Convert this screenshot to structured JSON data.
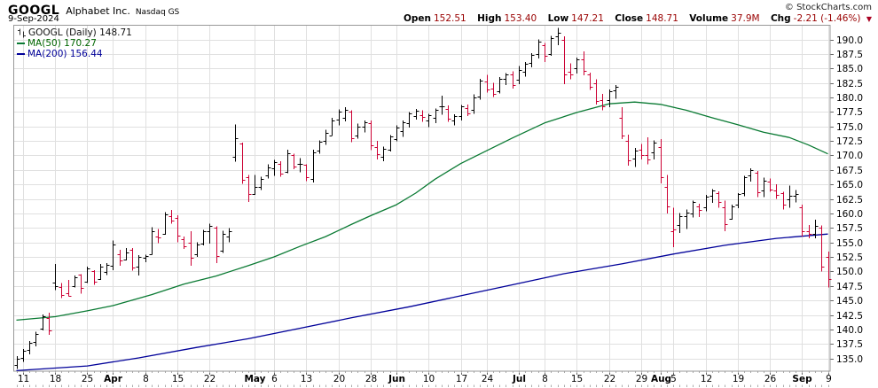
{
  "header": {
    "symbol": "GOOGL",
    "company": "Alphabet Inc.",
    "exchange": "Nasdaq GS",
    "date": "9-Sep-2024",
    "copyright": "© StockCharts.com",
    "quote": {
      "items": [
        {
          "label": "Open",
          "value": "152.51"
        },
        {
          "label": "High",
          "value": "153.40"
        },
        {
          "label": "Low",
          "value": "147.21"
        },
        {
          "label": "Close",
          "value": "148.71"
        },
        {
          "label": "Volume",
          "value": "37.9M"
        },
        {
          "label": "Chg",
          "value": "-2.21 (-1.46%)"
        }
      ],
      "down_icon": "▼"
    }
  },
  "legend": {
    "main": "GOOGL (Daily) 148.71",
    "ma50": "MA(50) 170.27",
    "ma200": "MA(200) 156.44"
  },
  "colors": {
    "up": "#000000",
    "down": "#cc0033",
    "ma50": "#0a7a33",
    "ma200": "#000099",
    "grid": "#e0e0e0",
    "frame": "#999999",
    "tick": "#666666",
    "day_tick": "#aaaaaa",
    "axis_text": "#000000"
  },
  "chart_data": {
    "type": "bar",
    "subtype": "ohlc-bars",
    "title": "GOOGL (Daily)",
    "ylabel": "Price",
    "ylim": [
      132.8,
      192.9
    ],
    "grid": true,
    "legend_position": "top-left",
    "y_ticks": [
      190.0,
      187.5,
      185.0,
      182.5,
      180.0,
      177.5,
      175.0,
      172.5,
      170.0,
      167.5,
      165.0,
      162.5,
      160.0,
      157.5,
      155.0,
      152.5,
      150.0,
      147.5,
      145.0,
      142.5,
      140.0,
      137.5,
      135.0
    ],
    "x_ticks": [
      {
        "i": 1,
        "label": "11"
      },
      {
        "i": 6,
        "label": "18"
      },
      {
        "i": 11,
        "label": "25"
      },
      {
        "i": 15,
        "label": "Apr",
        "bold": true
      },
      {
        "i": 20,
        "label": "8"
      },
      {
        "i": 25,
        "label": "15"
      },
      {
        "i": 30,
        "label": "22"
      },
      {
        "i": 37,
        "label": "May",
        "bold": true
      },
      {
        "i": 40,
        "label": "6"
      },
      {
        "i": 45,
        "label": "13"
      },
      {
        "i": 50,
        "label": "20"
      },
      {
        "i": 55,
        "label": "28"
      },
      {
        "i": 59,
        "label": "Jun",
        "bold": true
      },
      {
        "i": 64,
        "label": "10"
      },
      {
        "i": 69,
        "label": "17"
      },
      {
        "i": 73,
        "label": "24"
      },
      {
        "i": 78,
        "label": "Jul",
        "bold": true
      },
      {
        "i": 82,
        "label": "8"
      },
      {
        "i": 87,
        "label": "15"
      },
      {
        "i": 92,
        "label": "22"
      },
      {
        "i": 97,
        "label": "29"
      },
      {
        "i": 100,
        "label": "Aug",
        "bold": true
      },
      {
        "i": 102,
        "label": "5"
      },
      {
        "i": 107,
        "label": "12"
      },
      {
        "i": 112,
        "label": "19"
      },
      {
        "i": 117,
        "label": "26"
      },
      {
        "i": 122,
        "label": "Sep",
        "bold": true
      },
      {
        "i": 126,
        "label": "9"
      }
    ],
    "ohlc": [
      [
        "Mar 8",
        133.9,
        135.4,
        133.2,
        135.0
      ],
      [
        "Mar 11",
        135.1,
        136.6,
        134.4,
        136.3
      ],
      [
        "Mar 12",
        136.4,
        138.0,
        135.7,
        137.7
      ],
      [
        "Mar 13",
        137.8,
        139.6,
        137.1,
        139.2
      ],
      [
        "Mar 14",
        140.1,
        142.6,
        139.8,
        142.3
      ],
      [
        "Mar 15",
        142.0,
        142.9,
        139.1,
        139.9
      ],
      [
        "Mar 18",
        148.0,
        151.3,
        146.8,
        147.5
      ],
      [
        "Mar 19",
        147.3,
        148.0,
        145.4,
        146.0
      ],
      [
        "Mar 20",
        146.2,
        148.5,
        145.7,
        145.8
      ],
      [
        "Mar 21",
        147.5,
        149.3,
        147.2,
        149.0
      ],
      [
        "Mar 22",
        149.4,
        149.5,
        146.2,
        147.1
      ],
      [
        "Mar 25",
        148.2,
        150.8,
        148.0,
        150.5
      ],
      [
        "Mar 26",
        150.0,
        150.2,
        147.7,
        148.2
      ],
      [
        "Mar 27",
        148.7,
        151.3,
        148.5,
        150.8
      ],
      [
        "Mar 28",
        149.9,
        151.4,
        149.4,
        151.2
      ],
      [
        "Apr 1",
        151.0,
        155.3,
        150.2,
        154.6
      ],
      [
        "Apr 2",
        153.0,
        153.7,
        151.0,
        151.9
      ],
      [
        "Apr 3",
        152.0,
        154.0,
        151.9,
        153.3
      ],
      [
        "Apr 4",
        153.8,
        154.0,
        150.1,
        150.6
      ],
      [
        "Apr 5",
        150.8,
        152.8,
        149.3,
        152.5
      ],
      [
        "Apr 8",
        152.3,
        152.9,
        151.6,
        152.6
      ],
      [
        "Apr 9",
        153.0,
        157.6,
        152.9,
        156.9
      ],
      [
        "Apr 10",
        156.0,
        157.3,
        154.9,
        155.9
      ],
      [
        "Apr 11",
        156.5,
        160.2,
        156.3,
        159.9
      ],
      [
        "Apr 12",
        159.5,
        160.6,
        158.2,
        158.7
      ],
      [
        "Apr 15",
        159.3,
        159.7,
        155.0,
        156.1
      ],
      [
        "Apr 16",
        155.6,
        156.0,
        153.9,
        154.4
      ],
      [
        "Apr 17",
        155.0,
        156.9,
        151.0,
        152.3
      ],
      [
        "Apr 18",
        153.0,
        155.0,
        152.5,
        154.6
      ],
      [
        "Apr 19",
        154.8,
        157.2,
        154.5,
        156.9
      ],
      [
        "Apr 22",
        157.0,
        158.2,
        154.8,
        157.9
      ],
      [
        "Apr 23",
        157.5,
        157.8,
        151.4,
        152.6
      ],
      [
        "Apr 24",
        153.5,
        157.0,
        153.2,
        156.5
      ],
      [
        "Apr 25",
        156.0,
        157.5,
        155.0,
        157.0
      ],
      [
        "Apr 26",
        169.8,
        175.3,
        168.9,
        172.9
      ],
      [
        "Apr 29",
        172.0,
        172.2,
        165.1,
        165.8
      ],
      [
        "Apr 30",
        166.2,
        166.6,
        162.0,
        163.4
      ],
      [
        "May 1",
        163.3,
        166.6,
        163.2,
        164.6
      ],
      [
        "May 2",
        164.5,
        166.3,
        164.0,
        165.9
      ],
      [
        "May 3",
        166.5,
        168.5,
        166.0,
        167.9
      ],
      [
        "May 6",
        167.8,
        169.2,
        166.5,
        168.8
      ],
      [
        "May 7",
        168.5,
        169.0,
        166.3,
        166.9
      ],
      [
        "May 8",
        167.2,
        171.0,
        166.9,
        170.4
      ],
      [
        "May 9",
        170.0,
        170.3,
        167.6,
        168.1
      ],
      [
        "May 10",
        168.5,
        169.5,
        167.1,
        168.6
      ],
      [
        "May 13",
        168.4,
        168.5,
        165.6,
        166.3
      ],
      [
        "May 14",
        166.0,
        171.0,
        165.3,
        170.5
      ],
      [
        "May 15",
        170.8,
        172.6,
        170.3,
        172.3
      ],
      [
        "May 16",
        172.5,
        174.4,
        171.8,
        173.9
      ],
      [
        "May 17",
        173.5,
        176.5,
        173.4,
        176.1
      ],
      [
        "May 20",
        176.2,
        177.9,
        175.2,
        177.5
      ],
      [
        "May 21",
        176.5,
        178.3,
        175.9,
        177.9
      ],
      [
        "May 22",
        177.5,
        177.8,
        172.3,
        173.0
      ],
      [
        "May 23",
        173.5,
        175.5,
        172.9,
        175.0
      ],
      [
        "May 24",
        175.0,
        176.0,
        174.0,
        175.7
      ],
      [
        "May 28",
        175.5,
        176.0,
        170.9,
        171.8
      ],
      [
        "May 29",
        171.5,
        172.5,
        169.3,
        170.2
      ],
      [
        "May 30",
        169.8,
        171.5,
        169.0,
        171.2
      ],
      [
        "May 31",
        171.0,
        173.5,
        170.7,
        173.3
      ],
      [
        "Jun 3",
        172.8,
        175.2,
        172.4,
        174.8
      ],
      [
        "Jun 4",
        174.2,
        176.0,
        173.2,
        175.7
      ],
      [
        "Jun 5",
        175.5,
        177.5,
        174.8,
        177.2
      ],
      [
        "Jun 6",
        176.8,
        178.0,
        176.2,
        177.7
      ],
      [
        "Jun 7",
        177.0,
        177.8,
        175.8,
        176.7
      ],
      [
        "Jun 10",
        176.0,
        177.2,
        174.9,
        176.9
      ],
      [
        "Jun 11",
        176.5,
        178.1,
        175.6,
        177.8
      ],
      [
        "Jun 12",
        178.5,
        180.3,
        177.0,
        178.4
      ],
      [
        "Jun 13",
        178.0,
        178.6,
        175.8,
        176.3
      ],
      [
        "Jun 14",
        176.0,
        177.1,
        175.2,
        176.8
      ],
      [
        "Jun 17",
        176.8,
        178.7,
        176.0,
        178.4
      ],
      [
        "Jun 18",
        178.2,
        178.8,
        176.8,
        177.3
      ],
      [
        "Jun 20",
        177.8,
        180.5,
        177.2,
        180.0
      ],
      [
        "Jun 21",
        180.2,
        183.2,
        179.6,
        182.9
      ],
      [
        "Jun 24",
        182.8,
        183.9,
        180.8,
        181.3
      ],
      [
        "Jun 25",
        181.5,
        182.5,
        180.1,
        180.6
      ],
      [
        "Jun 26",
        181.0,
        183.5,
        180.7,
        183.2
      ],
      [
        "Jun 27",
        183.2,
        184.2,
        182.1,
        183.9
      ],
      [
        "Jun 28",
        184.0,
        184.5,
        181.5,
        182.2
      ],
      [
        "Jul 1",
        183.0,
        185.4,
        182.3,
        184.8
      ],
      [
        "Jul 2",
        184.5,
        186.1,
        183.6,
        185.8
      ],
      [
        "Jul 3",
        186.0,
        187.6,
        185.2,
        187.4
      ],
      [
        "Jul 5",
        187.5,
        190.0,
        186.7,
        189.6
      ],
      [
        "Jul 8",
        189.0,
        189.4,
        186.1,
        187.1
      ],
      [
        "Jul 9",
        187.5,
        190.6,
        187.2,
        190.3
      ],
      [
        "Jul 10",
        190.5,
        192.0,
        189.0,
        191.2
      ],
      [
        "Jul 11",
        190.0,
        190.5,
        182.3,
        184.0
      ],
      [
        "Jul 12",
        184.5,
        185.9,
        183.1,
        183.9
      ],
      [
        "Jul 15",
        185.0,
        186.9,
        184.1,
        186.6
      ],
      [
        "Jul 16",
        186.5,
        187.9,
        183.8,
        184.6
      ],
      [
        "Jul 17",
        184.0,
        184.3,
        181.3,
        181.8
      ],
      [
        "Jul 18",
        182.5,
        183.1,
        178.8,
        179.4
      ],
      [
        "Jul 19",
        179.5,
        180.6,
        177.8,
        178.4
      ],
      [
        "Jul 22",
        179.5,
        181.4,
        178.3,
        181.0
      ],
      [
        "Jul 23",
        181.2,
        182.1,
        179.8,
        181.8
      ],
      [
        "Jul 24",
        176.5,
        178.3,
        172.8,
        173.4
      ],
      [
        "Jul 25",
        172.5,
        173.6,
        168.2,
        169.2
      ],
      [
        "Jul 26",
        169.5,
        171.3,
        168.0,
        170.8
      ],
      [
        "Jul 29",
        171.0,
        172.0,
        169.3,
        170.1
      ],
      [
        "Jul 30",
        170.0,
        173.1,
        168.5,
        169.3
      ],
      [
        "Jul 31",
        170.5,
        172.6,
        169.3,
        172.2
      ],
      [
        "Aug 1",
        171.5,
        172.8,
        165.2,
        166.3
      ],
      [
        "Aug 2",
        164.5,
        166.6,
        160.0,
        161.2
      ],
      [
        "Aug 5",
        157.0,
        161.0,
        154.2,
        157.2
      ],
      [
        "Aug 6",
        158.0,
        160.1,
        156.6,
        159.5
      ],
      [
        "Aug 7",
        159.5,
        160.7,
        157.3,
        160.2
      ],
      [
        "Aug 8",
        160.0,
        162.2,
        159.3,
        161.9
      ],
      [
        "Aug 9",
        161.2,
        161.7,
        159.4,
        160.6
      ],
      [
        "Aug 12",
        161.0,
        163.2,
        160.4,
        162.9
      ],
      [
        "Aug 13",
        163.0,
        164.2,
        161.8,
        164.0
      ],
      [
        "Aug 14",
        163.5,
        163.8,
        161.0,
        161.9
      ],
      [
        "Aug 15",
        161.0,
        162.2,
        156.9,
        158.2
      ],
      [
        "Aug 16",
        159.0,
        161.5,
        158.9,
        161.2
      ],
      [
        "Aug 19",
        161.5,
        163.5,
        160.9,
        163.3
      ],
      [
        "Aug 20",
        163.5,
        166.5,
        163.0,
        166.2
      ],
      [
        "Aug 21",
        166.5,
        167.8,
        165.5,
        167.4
      ],
      [
        "Aug 22",
        167.0,
        167.3,
        162.8,
        163.6
      ],
      [
        "Aug 23",
        164.0,
        166.2,
        162.8,
        165.7
      ],
      [
        "Aug 26",
        165.5,
        166.0,
        163.7,
        164.1
      ],
      [
        "Aug 27",
        164.0,
        165.0,
        162.5,
        163.2
      ],
      [
        "Aug 28",
        163.5,
        163.7,
        160.7,
        161.5
      ],
      [
        "Aug 29",
        162.5,
        164.8,
        161.0,
        163.0
      ],
      [
        "Aug 30",
        163.0,
        164.0,
        161.9,
        163.4
      ],
      [
        "Sep 3",
        161.0,
        161.5,
        156.0,
        156.9
      ],
      [
        "Sep 4",
        157.0,
        158.0,
        155.7,
        156.4
      ],
      [
        "Sep 5",
        156.5,
        158.9,
        155.7,
        157.9
      ],
      [
        "Sep 6",
        157.5,
        157.9,
        150.0,
        150.9
      ],
      [
        "Sep 9",
        152.5,
        153.4,
        147.2,
        148.7
      ]
    ],
    "ma50": {
      "period": 50,
      "last": 170.27,
      "anchors": [
        [
          0,
          141.6
        ],
        [
          6,
          142.2
        ],
        [
          11,
          143.2
        ],
        [
          15,
          144.1
        ],
        [
          21,
          146.0
        ],
        [
          26,
          147.8
        ],
        [
          31,
          149.2
        ],
        [
          36,
          151.0
        ],
        [
          40,
          152.5
        ],
        [
          44,
          154.3
        ],
        [
          48,
          156.0
        ],
        [
          52,
          158.1
        ],
        [
          55,
          159.6
        ],
        [
          59,
          161.5
        ],
        [
          62,
          163.5
        ],
        [
          65,
          165.9
        ],
        [
          69,
          168.6
        ],
        [
          73,
          170.8
        ],
        [
          77,
          173.0
        ],
        [
          82,
          175.6
        ],
        [
          87,
          177.4
        ],
        [
          92,
          178.9
        ],
        [
          96,
          179.2
        ],
        [
          100,
          178.8
        ],
        [
          104,
          177.8
        ],
        [
          108,
          176.5
        ],
        [
          112,
          175.3
        ],
        [
          116,
          174.0
        ],
        [
          120,
          173.1
        ],
        [
          123,
          171.8
        ],
        [
          126,
          170.27
        ]
      ]
    },
    "ma200": {
      "period": 200,
      "last": 156.44,
      "anchors": [
        [
          0,
          132.9
        ],
        [
          11,
          133.7
        ],
        [
          19,
          135.1
        ],
        [
          28,
          136.9
        ],
        [
          36,
          138.4
        ],
        [
          44,
          140.2
        ],
        [
          52,
          142.0
        ],
        [
          61,
          143.9
        ],
        [
          69,
          145.8
        ],
        [
          77,
          147.7
        ],
        [
          85,
          149.6
        ],
        [
          94,
          151.3
        ],
        [
          102,
          153.0
        ],
        [
          110,
          154.5
        ],
        [
          118,
          155.7
        ],
        [
          126,
          156.44
        ]
      ]
    }
  }
}
